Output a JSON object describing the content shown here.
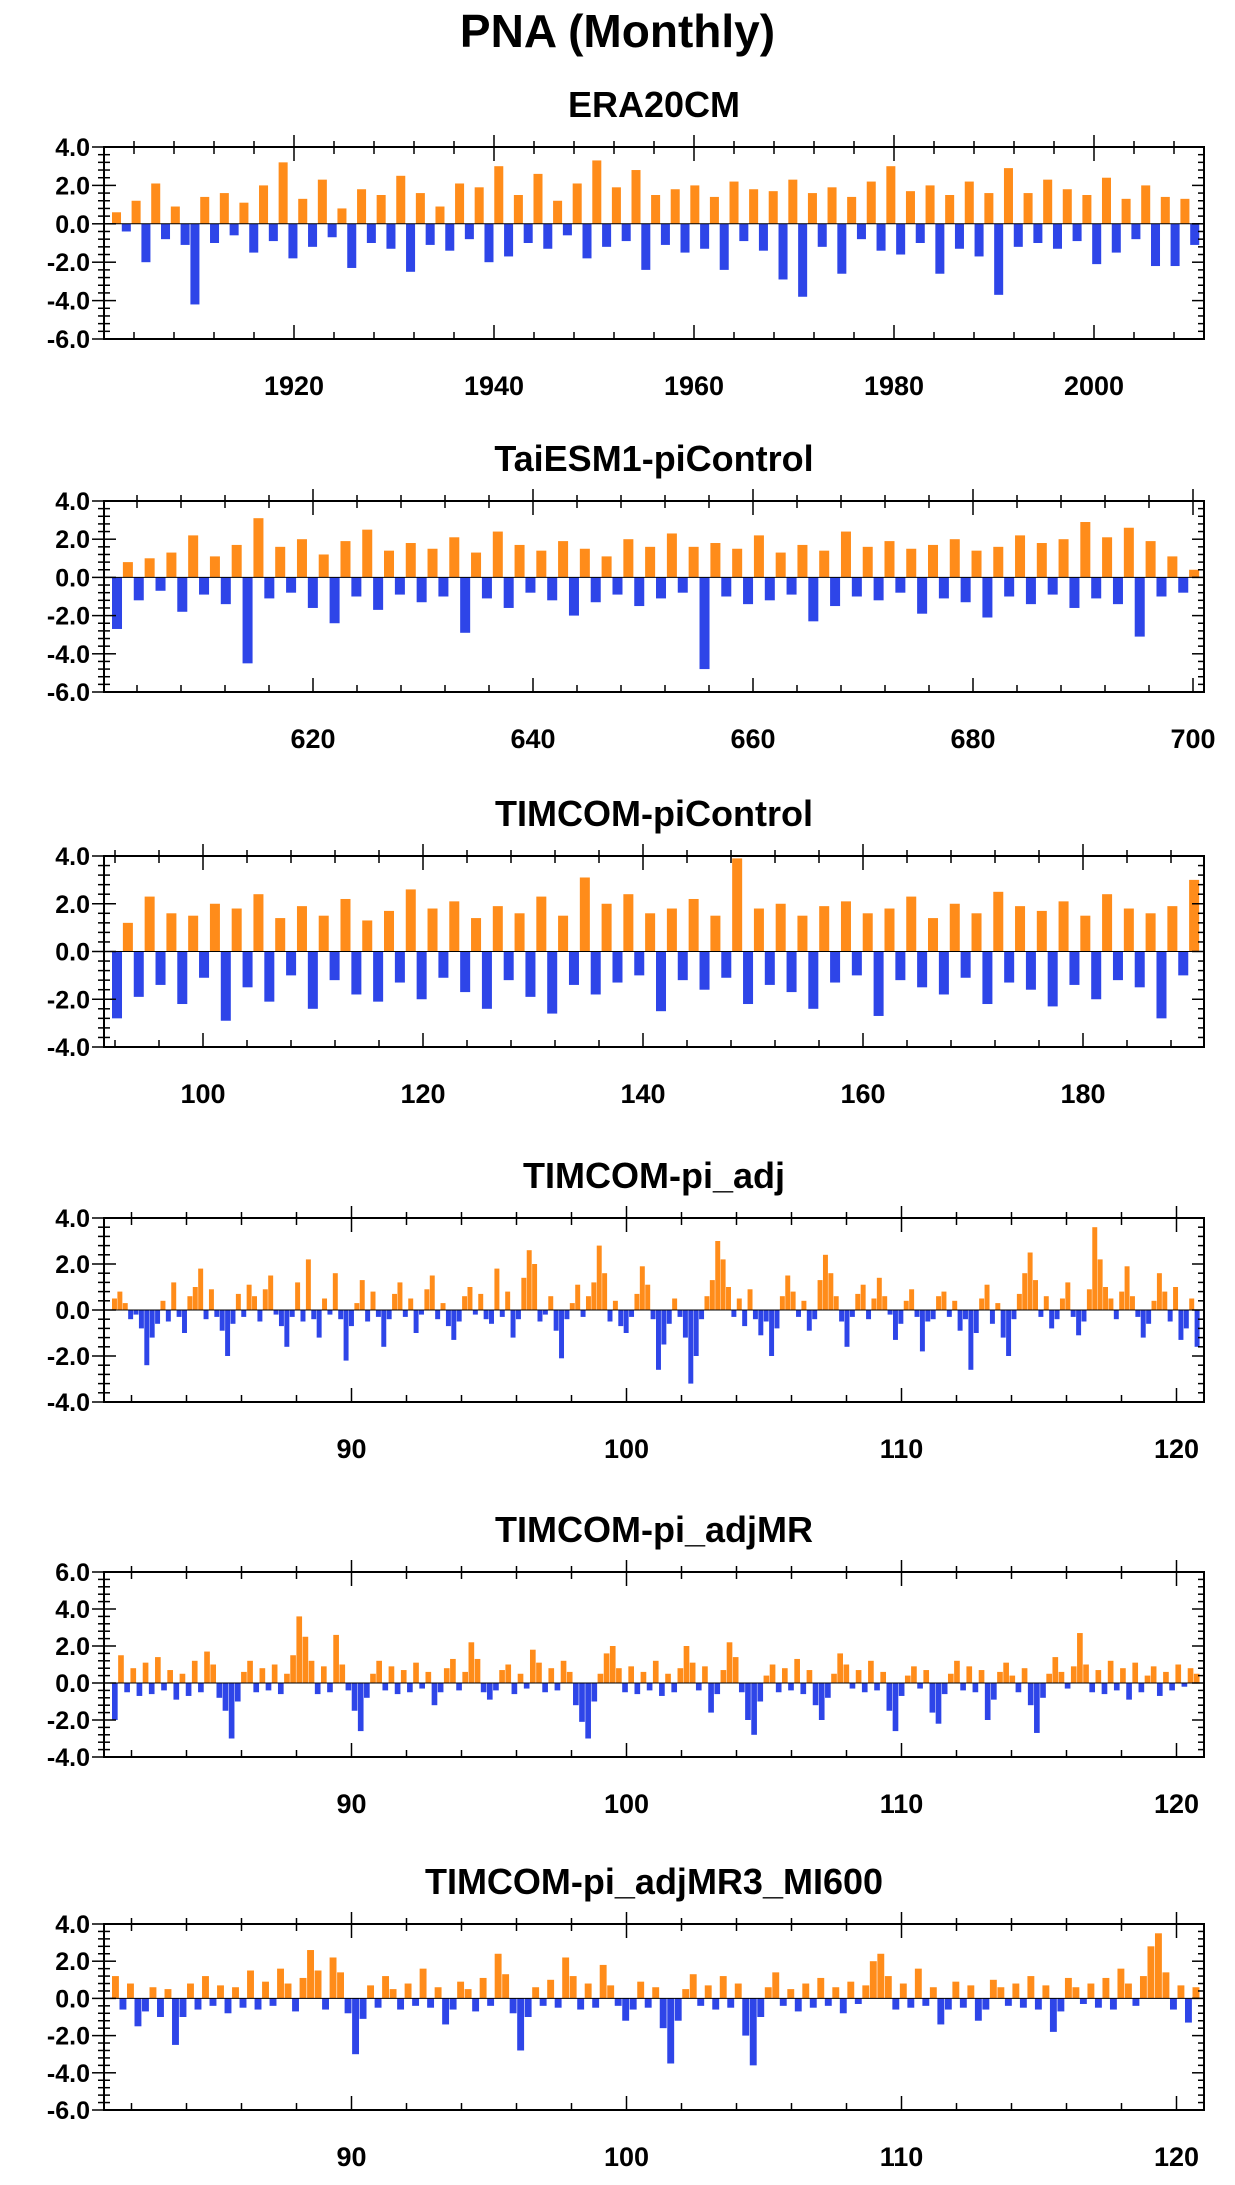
{
  "figure": {
    "title": "PNA (Monthly)"
  },
  "colors": {
    "positive": "#ff8c1a",
    "negative": "#2e45e8",
    "axis": "#000000"
  },
  "chart_data": [
    {
      "type": "bar",
      "title": "ERA20CM",
      "x_start": 1901,
      "x_end": 2011,
      "xticks": [
        1920,
        1940,
        1960,
        1980,
        2000
      ],
      "xtick_labels": [
        "1920",
        "1940",
        "1960",
        "1980",
        "2000"
      ],
      "ylim": [
        -6.0,
        4.0
      ],
      "yticks": [
        4.0,
        2.0,
        0.0,
        -2.0,
        -4.0,
        -6.0
      ],
      "ytick_labels": [
        "4.0",
        "2.0",
        "0.0",
        "-2.0",
        "-4.0",
        "-6.0"
      ],
      "series": [
        {
          "values": [
            0.6,
            -0.4,
            1.2,
            -2.0,
            2.1,
            -0.8,
            0.9,
            -1.1,
            -4.2,
            1.4,
            -1.0,
            1.6,
            -0.6,
            1.1,
            -1.5,
            2.0,
            -0.9,
            3.2,
            -1.8,
            1.3,
            -1.2,
            2.3,
            -0.7,
            0.8,
            -2.3,
            1.8,
            -1.0,
            1.5,
            -1.3,
            2.5,
            -2.5,
            1.6,
            -1.1,
            0.9,
            -1.4,
            2.1,
            -0.8,
            1.9,
            -2.0,
            3.0,
            -1.7,
            1.5,
            -1.0,
            2.6,
            -1.3,
            1.2,
            -0.6,
            2.1,
            -1.8,
            3.3,
            -1.2,
            1.9,
            -0.9,
            2.8,
            -2.4,
            1.5,
            -1.1,
            1.8,
            -1.5,
            2.0,
            -1.3,
            1.4,
            -2.4,
            2.2,
            -0.9,
            1.8,
            -1.4,
            1.7,
            -2.9,
            2.3,
            -3.8,
            1.6,
            -1.2,
            1.9,
            -2.6,
            1.4,
            -0.8,
            2.2,
            -1.4,
            3.0,
            -1.6,
            1.7,
            -1.0,
            2.0,
            -2.6,
            1.5,
            -1.3,
            2.2,
            -1.7,
            1.6,
            -3.7,
            2.9,
            -1.2,
            1.6,
            -1.0,
            2.3,
            -1.3,
            1.8,
            -0.9,
            1.5,
            -2.1,
            2.4,
            -1.5,
            1.3,
            -0.8,
            2.0,
            -2.2,
            1.4,
            -2.2,
            1.3,
            -1.1
          ]
        }
      ]
    },
    {
      "type": "bar",
      "title": "TaiESM1-piControl",
      "x_start": 601,
      "x_end": 701,
      "xticks": [
        620,
        640,
        660,
        680,
        700
      ],
      "xtick_labels": [
        "620",
        "640",
        "660",
        "680",
        "700"
      ],
      "ylim": [
        -6.0,
        4.0
      ],
      "yticks": [
        4.0,
        2.0,
        0.0,
        -2.0,
        -4.0,
        -6.0
      ],
      "ytick_labels": [
        "4.0",
        "2.0",
        "0.0",
        "-2.0",
        "-4.0",
        "-6.0"
      ],
      "series": [
        {
          "values": [
            -2.7,
            0.8,
            -1.2,
            1.0,
            -0.7,
            1.3,
            -1.8,
            2.2,
            -0.9,
            1.1,
            -1.4,
            1.7,
            -4.5,
            3.1,
            -1.1,
            1.6,
            -0.8,
            2.0,
            -1.6,
            1.2,
            -2.4,
            1.9,
            -1.0,
            2.5,
            -1.7,
            1.4,
            -0.9,
            1.8,
            -1.3,
            1.5,
            -1.0,
            2.1,
            -2.9,
            1.3,
            -1.1,
            2.4,
            -1.6,
            1.7,
            -0.8,
            1.4,
            -1.2,
            1.9,
            -2.0,
            1.5,
            -1.3,
            1.1,
            -0.9,
            2.0,
            -1.5,
            1.6,
            -1.1,
            2.3,
            -0.8,
            1.6,
            -4.8,
            1.8,
            -1.0,
            1.5,
            -1.4,
            2.2,
            -1.2,
            1.3,
            -0.9,
            1.7,
            -2.3,
            1.4,
            -1.5,
            2.4,
            -1.0,
            1.6,
            -1.2,
            1.9,
            -0.8,
            1.5,
            -1.9,
            1.7,
            -1.1,
            2.0,
            -1.3,
            1.4,
            -2.1,
            1.6,
            -1.0,
            2.2,
            -1.4,
            1.8,
            -0.9,
            2.0,
            -1.6,
            2.9,
            -1.1,
            2.1,
            -1.4,
            2.6,
            -3.1,
            1.9,
            -1.0,
            1.1,
            -0.8,
            0.4
          ]
        }
      ]
    },
    {
      "type": "bar",
      "title": "TIMCOM-piControl",
      "x_start": 91,
      "x_end": 191,
      "xticks": [
        100,
        120,
        140,
        160,
        180
      ],
      "xtick_labels": [
        "100",
        "120",
        "140",
        "160",
        "180"
      ],
      "ylim": [
        -4.0,
        4.0
      ],
      "yticks": [
        4.0,
        2.0,
        0.0,
        -2.0,
        -4.0
      ],
      "ytick_labels": [
        "4.0",
        "2.0",
        "0.0",
        "-2.0",
        "-4.0"
      ],
      "series": [
        {
          "values": [
            -2.8,
            1.2,
            -1.9,
            2.3,
            -1.4,
            1.6,
            -2.2,
            1.5,
            -1.1,
            2.0,
            -2.9,
            1.8,
            -1.5,
            2.4,
            -2.1,
            1.4,
            -1.0,
            1.9,
            -2.4,
            1.5,
            -1.2,
            2.2,
            -1.8,
            1.3,
            -2.1,
            1.7,
            -1.3,
            2.6,
            -2.0,
            1.8,
            -1.1,
            2.1,
            -1.7,
            1.4,
            -2.4,
            1.9,
            -1.2,
            1.6,
            -1.9,
            2.3,
            -2.6,
            1.5,
            -1.4,
            3.1,
            -1.8,
            2.0,
            -1.3,
            2.4,
            -1.0,
            1.6,
            -2.5,
            1.8,
            -1.2,
            2.2,
            -1.6,
            1.5,
            -1.1,
            3.9,
            -2.2,
            1.8,
            -1.4,
            2.0,
            -1.7,
            1.5,
            -2.4,
            1.9,
            -1.3,
            2.1,
            -1.0,
            1.6,
            -2.7,
            1.8,
            -1.2,
            2.3,
            -1.5,
            1.4,
            -1.8,
            2.0,
            -1.1,
            1.6,
            -2.2,
            2.5,
            -1.3,
            1.9,
            -1.6,
            1.7,
            -2.3,
            2.1,
            -1.4,
            1.5,
            -2.0,
            2.4,
            -1.2,
            1.8,
            -1.5,
            1.6,
            -2.8,
            1.9,
            -1.0,
            3.0
          ]
        }
      ]
    },
    {
      "type": "bar",
      "title": "TIMCOM-pi_adj",
      "x_start": 81,
      "x_end": 121,
      "xticks": [
        90,
        100,
        110,
        120
      ],
      "xtick_labels": [
        "90",
        "100",
        "110",
        "120"
      ],
      "ylim": [
        -4.0,
        4.0
      ],
      "yticks": [
        4.0,
        2.0,
        0.0,
        -2.0,
        -4.0
      ],
      "ytick_labels": [
        "4.0",
        "2.0",
        "0.0",
        "-2.0",
        "-4.0"
      ],
      "series": [
        {
          "values": [
            0.5,
            0.8,
            0.3,
            -0.4,
            -0.2,
            -0.8,
            -2.4,
            -1.2,
            -0.6,
            0.4,
            -0.5,
            1.2,
            -0.3,
            -1.0,
            0.6,
            1.0,
            1.8,
            -0.4,
            0.9,
            -0.3,
            -0.9,
            -2.0,
            -0.6,
            0.7,
            -0.3,
            1.1,
            0.6,
            -0.5,
            0.9,
            1.5,
            -0.2,
            -0.7,
            -1.6,
            -0.3,
            1.2,
            -0.5,
            2.2,
            -0.4,
            -1.2,
            0.5,
            -0.2,
            1.6,
            -0.4,
            -2.2,
            -0.7,
            0.3,
            1.3,
            -0.5,
            0.8,
            -0.3,
            -1.6,
            -0.4,
            0.7,
            1.2,
            -0.3,
            0.5,
            -1.0,
            -0.2,
            0.9,
            1.5,
            -0.4,
            0.3,
            -0.7,
            -1.3,
            -0.5,
            0.6,
            1.0,
            -0.2,
            0.7,
            -0.4,
            -0.6,
            1.8,
            -0.3,
            0.8,
            -1.2,
            -0.4,
            1.4,
            2.6,
            2.0,
            -0.5,
            -0.2,
            0.6,
            -0.9,
            -2.1,
            -0.4,
            0.3,
            1.1,
            -0.3,
            0.6,
            1.2,
            2.8,
            1.6,
            -0.5,
            0.4,
            -0.7,
            -1.0,
            -0.3,
            0.7,
            1.9,
            1.1,
            -0.4,
            -2.6,
            -1.5,
            -0.6,
            0.5,
            -0.3,
            -1.2,
            -3.2,
            -2.0,
            -0.4,
            0.6,
            1.3,
            3.0,
            2.2,
            1.0,
            -0.3,
            0.5,
            -0.7,
            0.9,
            -0.4,
            -1.1,
            -0.5,
            -2.0,
            -0.8,
            0.6,
            1.5,
            0.8,
            -0.3,
            0.4,
            -0.9,
            -0.4,
            1.3,
            2.4,
            1.6,
            0.6,
            -0.5,
            -1.6,
            -0.3,
            0.7,
            1.1,
            -0.4,
            0.5,
            1.4,
            0.6,
            -0.2,
            -1.3,
            -0.6,
            0.4,
            0.9,
            -0.3,
            -1.8,
            -0.5,
            -0.4,
            0.6,
            0.8,
            -0.3,
            0.4,
            -0.9,
            -0.4,
            -2.6,
            -1.0,
            0.5,
            1.1,
            -0.6,
            0.3,
            -1.2,
            -2.0,
            -0.4,
            0.7,
            1.6,
            2.5,
            1.3,
            -0.3,
            0.6,
            -0.8,
            -0.4,
            0.5,
            1.2,
            -0.3,
            -1.1,
            -0.5,
            0.9,
            3.6,
            2.2,
            1.0,
            0.5,
            -0.4,
            0.8,
            1.9,
            0.6,
            -0.3,
            -1.2,
            -0.6,
            0.4,
            1.6,
            0.8,
            -0.5,
            1.0,
            -1.3,
            -0.8,
            0.5,
            -1.6
          ]
        }
      ]
    },
    {
      "type": "bar",
      "title": "TIMCOM-pi_adjMR",
      "x_start": 81,
      "x_end": 121,
      "xticks": [
        90,
        100,
        110,
        120
      ],
      "xtick_labels": [
        "90",
        "100",
        "110",
        "120"
      ],
      "ylim": [
        -4.0,
        6.0
      ],
      "yticks": [
        6.0,
        4.0,
        2.0,
        0.0,
        -2.0,
        -4.0
      ],
      "ytick_labels": [
        "6.0",
        "4.0",
        "2.0",
        "0.0",
        "-2.0",
        "-4.0"
      ],
      "series": [
        {
          "values": [
            -2.0,
            1.5,
            -0.5,
            0.8,
            -0.7,
            1.1,
            -0.6,
            1.4,
            -0.4,
            0.7,
            -0.9,
            0.5,
            -0.7,
            1.2,
            -0.5,
            1.7,
            1.0,
            -0.8,
            -1.5,
            -3.0,
            -1.0,
            0.6,
            1.2,
            -0.5,
            0.8,
            -0.4,
            1.0,
            -0.6,
            0.5,
            1.5,
            3.6,
            2.5,
            1.2,
            -0.6,
            0.9,
            -0.5,
            2.6,
            1.0,
            -0.4,
            -1.5,
            -2.6,
            -0.8,
            0.5,
            1.2,
            -0.4,
            0.9,
            -0.6,
            0.7,
            -0.5,
            1.1,
            -0.3,
            0.6,
            -1.2,
            -0.5,
            0.8,
            1.3,
            -0.4,
            0.6,
            2.2,
            1.3,
            -0.5,
            -0.9,
            -0.4,
            0.7,
            1.0,
            -0.6,
            0.5,
            -0.3,
            1.8,
            1.1,
            -0.5,
            0.8,
            -0.4,
            1.2,
            0.6,
            -1.2,
            -2.1,
            -3.0,
            -1.0,
            0.5,
            1.6,
            2.0,
            0.8,
            -0.5,
            0.9,
            -0.6,
            0.6,
            -0.4,
            1.2,
            -0.7,
            0.5,
            -0.5,
            0.8,
            2.0,
            1.1,
            -0.4,
            0.9,
            -1.6,
            -0.6,
            0.7,
            2.2,
            1.4,
            -0.5,
            -2.0,
            -2.8,
            -1.0,
            0.4,
            1.0,
            -0.5,
            0.8,
            -0.4,
            1.3,
            -0.6,
            0.7,
            -1.2,
            -2.0,
            -0.8,
            0.5,
            1.6,
            1.0,
            -0.3,
            0.7,
            -0.5,
            1.2,
            -0.4,
            0.6,
            -1.5,
            -2.6,
            -0.7,
            0.4,
            0.9,
            -0.3,
            0.7,
            -1.6,
            -2.2,
            -0.6,
            0.5,
            1.2,
            -0.4,
            0.9,
            -0.5,
            0.7,
            -2.0,
            -0.9,
            0.6,
            1.1,
            0.4,
            -0.5,
            0.8,
            -1.2,
            -2.7,
            -0.8,
            0.5,
            1.4,
            0.6,
            -0.3,
            0.9,
            2.7,
            1.0,
            -0.5,
            0.7,
            -0.6,
            1.2,
            -0.4,
            0.8,
            -0.9,
            1.1,
            -0.5,
            0.4,
            0.9,
            -0.7,
            0.6,
            -0.4,
            1.0,
            -0.2,
            0.8,
            0.5
          ]
        }
      ]
    },
    {
      "type": "bar",
      "title": "TIMCOM-pi_adjMR3_MI600",
      "x_start": 81,
      "x_end": 121,
      "xticks": [
        90,
        100,
        110,
        120
      ],
      "xtick_labels": [
        "90",
        "100",
        "110",
        "120"
      ],
      "ylim": [
        -6.0,
        4.0
      ],
      "yticks": [
        4.0,
        2.0,
        0.0,
        -2.0,
        -4.0,
        -6.0
      ],
      "ytick_labels": [
        "4.0",
        "2.0",
        "0.0",
        "-2.0",
        "-4.0",
        "-6.0"
      ],
      "series": [
        {
          "values": [
            1.2,
            -0.6,
            0.8,
            -1.5,
            -0.7,
            0.6,
            -1.0,
            0.5,
            -2.5,
            -1.0,
            0.8,
            -0.6,
            1.2,
            -0.4,
            0.7,
            -0.8,
            0.6,
            -0.5,
            1.5,
            -0.6,
            0.9,
            -0.4,
            1.6,
            0.8,
            -0.7,
            1.1,
            2.6,
            1.5,
            -0.6,
            2.2,
            1.4,
            -0.8,
            -3.0,
            -1.1,
            0.7,
            -0.5,
            1.2,
            0.5,
            -0.6,
            0.8,
            -0.4,
            1.6,
            -0.5,
            0.6,
            -1.4,
            -0.6,
            0.9,
            0.5,
            -0.7,
            1.1,
            -0.4,
            2.4,
            1.3,
            -0.8,
            -2.8,
            -1.0,
            0.6,
            -0.4,
            1.0,
            -0.5,
            2.2,
            1.2,
            -0.6,
            0.8,
            -0.5,
            1.8,
            0.7,
            -0.4,
            -1.2,
            -0.6,
            0.9,
            -0.5,
            0.6,
            -1.6,
            -3.5,
            -1.2,
            0.5,
            1.3,
            -0.4,
            0.7,
            -0.6,
            1.2,
            -0.5,
            0.8,
            -2.0,
            -3.6,
            -1.0,
            0.6,
            1.4,
            -0.4,
            0.5,
            -0.7,
            0.8,
            -0.5,
            1.1,
            -0.4,
            0.6,
            -0.8,
            0.9,
            -0.3,
            0.7,
            2.0,
            2.4,
            1.2,
            -0.6,
            0.8,
            -0.5,
            1.6,
            -0.4,
            0.6,
            -1.4,
            -0.6,
            0.9,
            -0.5,
            0.7,
            -1.2,
            -0.6,
            1.0,
            0.6,
            -0.4,
            0.8,
            -0.5,
            1.2,
            -0.6,
            0.7,
            -1.8,
            -0.7,
            1.1,
            0.6,
            -0.3,
            0.8,
            -0.5,
            1.1,
            -0.6,
            1.6,
            0.8,
            -0.4,
            1.2,
            2.8,
            3.5,
            1.4,
            -0.6,
            0.7,
            -1.3,
            0.6
          ]
        }
      ]
    }
  ]
}
